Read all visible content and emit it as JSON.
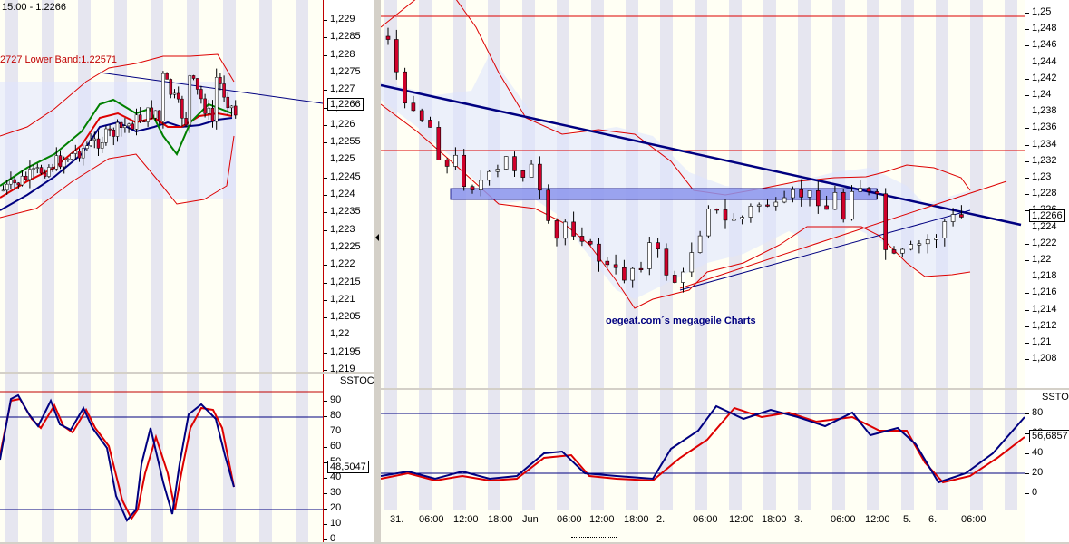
{
  "left_chart": {
    "header": "15:00 - 1.2266",
    "band_label": "2727 Lower Band:1.22571",
    "price_ticks": [
      "1,229",
      "1,2285",
      "1,228",
      "1,2275",
      "1,227",
      "1,2265",
      "1,226",
      "1,2255",
      "1,225",
      "1,2245",
      "1,224",
      "1,2235",
      "1,223",
      "1,2225",
      "1,222",
      "1,2215",
      "1,221",
      "1,2205",
      "1,22",
      "1,2195",
      "1,219"
    ],
    "current_price": "1,2266",
    "indicator_label": "SSTOC",
    "indicator_ticks": [
      "90",
      "80",
      "70",
      "60",
      "50",
      "40",
      "30",
      "20",
      "10",
      "0"
    ],
    "indicator_value": "48,5047"
  },
  "right_chart": {
    "price_ticks": [
      "1,25",
      "1,248",
      "1,246",
      "1,244",
      "1,242",
      "1,24",
      "1,238",
      "1,236",
      "1,234",
      "1,232",
      "1,23",
      "1,228",
      "1,226",
      "1,224",
      "1,222",
      "1,22",
      "1,218",
      "1,216",
      "1,214",
      "1,212",
      "1,21",
      "1,208"
    ],
    "current_price": "1,2266",
    "watermark": "oegeat.com´s megageile Charts",
    "indicator_label": "SSTO",
    "indicator_ticks": [
      "80",
      "60",
      "40",
      "20",
      "0"
    ],
    "indicator_value": "56,6857",
    "time_labels": [
      "31.",
      "06:00",
      "12:00",
      "18:00",
      "Jun",
      "06:00",
      "12:00",
      "18:00",
      "2.",
      "06:00",
      "12:00",
      "18:00",
      "3.",
      "06:00",
      "12:00",
      "5.",
      "6.",
      "06:00"
    ]
  },
  "colors": {
    "panel_bg": "#fffff4",
    "stripe": "#e6e6f0",
    "up_candle": "#ffffff",
    "down_candle": "#d0002a",
    "trend_line": "#000080",
    "band": "#dd0000",
    "ma_green": "#008000",
    "ma_red": "#dd0000",
    "ma_blue": "#000080"
  }
}
